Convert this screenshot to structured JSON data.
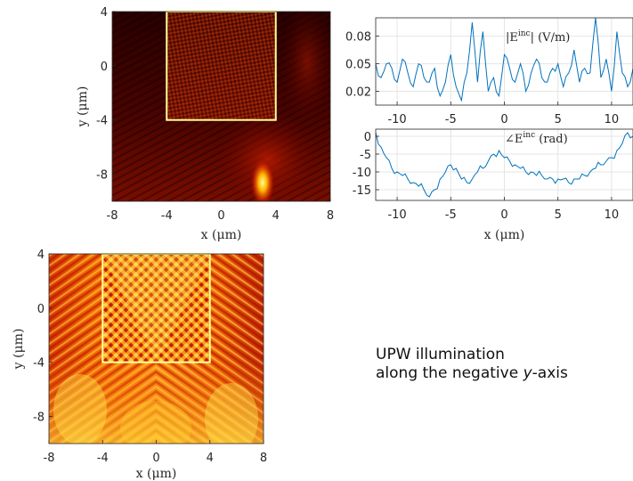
{
  "caption": {
    "line1": "UPW illumination",
    "line2_prefix": "along the negative ",
    "line2_var": "y",
    "line2_suffix": "-axis"
  },
  "colors": {
    "line": "#0072BD",
    "box": "#ffff99",
    "axis": "#262626",
    "grid": "#e5e5e5"
  },
  "chart_data": [
    {
      "type": "heatmap",
      "name": "incident-field-top",
      "xlabel": "x (μm)",
      "ylabel": "y (μm)",
      "xlim": [
        -8,
        8
      ],
      "ylim": [
        -10,
        4
      ],
      "xticks": [
        -8,
        -4,
        0,
        4,
        8
      ],
      "yticks": [
        4,
        0,
        -4,
        -8
      ],
      "tick_labels_x": [
        "-8",
        "-4",
        "0",
        "4",
        "8"
      ],
      "tick_labels_y": [
        "4",
        "0",
        "-4",
        "-8"
      ],
      "colormap": "hot",
      "overlay_box": {
        "x0": -4,
        "x1": 4,
        "y0": -4,
        "y1": 4
      }
    },
    {
      "type": "line",
      "name": "incident-magnitude",
      "legend": "|E^inc| (V/m)",
      "legend_main": "|E",
      "legend_sup": "inc",
      "legend_tail": "| (V/m)",
      "xlim": [
        -12,
        12
      ],
      "ylim": [
        0.005,
        0.1
      ],
      "xticks": [
        -10,
        -5,
        0,
        5,
        10
      ],
      "yticks": [
        0.02,
        0.05,
        0.08
      ],
      "tick_labels_x": [
        "-10",
        "-5",
        "0",
        "5",
        "10"
      ],
      "tick_labels_y": [
        "0.02",
        "0.05",
        "0.08"
      ],
      "grid": true,
      "x": [
        -12,
        -11.5,
        -11,
        -10.5,
        -10,
        -9.5,
        -9,
        -8.5,
        -8,
        -7.5,
        -7,
        -6.5,
        -6,
        -5.5,
        -5,
        -4.5,
        -4,
        -3.5,
        -3,
        -2.5,
        -2,
        -1.5,
        -1,
        -0.5,
        0,
        0.5,
        1,
        1.5,
        2,
        2.5,
        3,
        3.5,
        4,
        4.5,
        5,
        5.5,
        6,
        6.5,
        7,
        7.5,
        8,
        8.5,
        9,
        9.5,
        10,
        10.5,
        11,
        11.5,
        12
      ],
      "y": [
        0.05,
        0.035,
        0.05,
        0.045,
        0.03,
        0.055,
        0.04,
        0.025,
        0.05,
        0.035,
        0.03,
        0.045,
        0.015,
        0.03,
        0.06,
        0.025,
        0.01,
        0.04,
        0.095,
        0.03,
        0.085,
        0.02,
        0.035,
        0.015,
        0.06,
        0.045,
        0.03,
        0.05,
        0.02,
        0.04,
        0.055,
        0.035,
        0.03,
        0.045,
        0.05,
        0.025,
        0.04,
        0.065,
        0.03,
        0.045,
        0.04,
        0.1,
        0.035,
        0.055,
        0.02,
        0.085,
        0.04,
        0.025,
        0.045
      ]
    },
    {
      "type": "line",
      "name": "incident-phase",
      "legend": "∠E^inc (rad)",
      "legend_main": "∠E",
      "legend_sup": "inc",
      "legend_tail": " (rad)",
      "xlabel": "x (μm)",
      "xlim": [
        -12,
        12
      ],
      "ylim": [
        -18,
        2
      ],
      "xticks": [
        -10,
        -5,
        0,
        5,
        10
      ],
      "yticks": [
        0,
        -5,
        -10,
        -15
      ],
      "tick_labels_x": [
        "-10",
        "-5",
        "0",
        "5",
        "10"
      ],
      "tick_labels_y": [
        "0",
        "-5",
        "-10",
        "-15"
      ],
      "grid": true,
      "x": [
        -12,
        -11.5,
        -11,
        -10.5,
        -10,
        -9.5,
        -9,
        -8.5,
        -8,
        -7.5,
        -7,
        -6.5,
        -6,
        -5.5,
        -5,
        -4.5,
        -4,
        -3.5,
        -3,
        -2.5,
        -2,
        -1.5,
        -1,
        -0.5,
        0,
        0.5,
        1,
        1.5,
        2,
        2.5,
        3,
        3.5,
        4,
        4.5,
        5,
        5.5,
        6,
        6.5,
        7,
        7.5,
        8,
        8.5,
        9,
        9.5,
        10,
        10.5,
        11,
        11.5,
        12
      ],
      "y": [
        1,
        -3,
        -6,
        -9,
        -10,
        -11,
        -12,
        -13,
        -14,
        -15,
        -17,
        -15,
        -12,
        -10,
        -8,
        -9,
        -12,
        -13,
        -12,
        -10,
        -9,
        -7,
        -5,
        -4,
        -6,
        -7,
        -8,
        -9,
        -10,
        -10,
        -11,
        -11,
        -12,
        -12,
        -12,
        -12,
        -13,
        -12,
        -12,
        -11,
        -10,
        -9,
        -8,
        -7,
        -6,
        -4,
        -2,
        1,
        0
      ]
    },
    {
      "type": "heatmap",
      "name": "total-field-bottom",
      "xlabel": "x (μm)",
      "ylabel": "y (μm)",
      "xlim": [
        -8,
        8
      ],
      "ylim": [
        -10,
        4
      ],
      "xticks": [
        -8,
        -4,
        0,
        4,
        8
      ],
      "yticks": [
        4,
        0,
        -4,
        -8
      ],
      "tick_labels_x": [
        "-8",
        "-4",
        "0",
        "4",
        "8"
      ],
      "tick_labels_y": [
        "4",
        "0",
        "-4",
        "-8"
      ],
      "colormap": "hot",
      "overlay_box": {
        "x0": -4,
        "x1": 4,
        "y0": -4,
        "y1": 4
      }
    }
  ]
}
